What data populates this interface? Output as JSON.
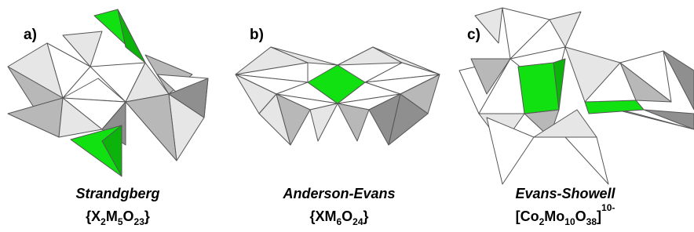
{
  "panels": [
    {
      "label": "a)",
      "name": "Strandgberg",
      "formula": [
        {
          "text": "{X"
        },
        {
          "sub": "2"
        },
        {
          "text": "M"
        },
        {
          "sub": "5"
        },
        {
          "text": "O"
        },
        {
          "sub": "23"
        },
        {
          "text": "}"
        }
      ]
    },
    {
      "label": "b)",
      "name": "Anderson-Evans",
      "formula": [
        {
          "text": "{XM"
        },
        {
          "sub": "6"
        },
        {
          "text": "O"
        },
        {
          "sub": "24"
        },
        {
          "text": "}"
        }
      ]
    },
    {
      "label": "c)",
      "name": "Evans-Showell",
      "formula": [
        {
          "text": "[Co"
        },
        {
          "sub": "2"
        },
        {
          "text": "Mo"
        },
        {
          "sub": "10"
        },
        {
          "text": "O"
        },
        {
          "sub": "38"
        },
        {
          "text": "]"
        },
        {
          "sup": "10-"
        }
      ]
    }
  ]
}
